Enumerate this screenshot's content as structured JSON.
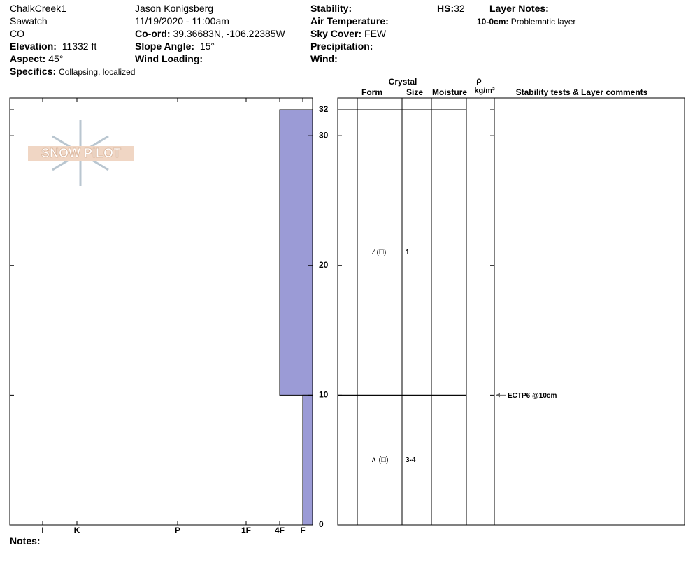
{
  "header": {
    "site": "ChalkCreek1",
    "range": "Sawatch",
    "state": "CO",
    "elevation": {
      "label": "Elevation:",
      "value": "11332 ft"
    },
    "aspect": {
      "label": "Aspect:",
      "value": "45°"
    },
    "specifics": {
      "label": "Specifics:",
      "value": "Collapsing, localized"
    },
    "observer": "Jason Konigsberg",
    "datetime": "11/19/2020 - 11:00am",
    "coord": {
      "label": "Co-ord:",
      "value": "39.36683N, -106.22385W"
    },
    "slope": {
      "label": "Slope Angle:",
      "value": "15°"
    },
    "wind_loading": {
      "label": "Wind Loading:"
    },
    "stability": {
      "label": "Stability:"
    },
    "air_temperature": {
      "label": "Air Temperature:"
    },
    "sky_cover": {
      "label": "Sky Cover:",
      "value": "FEW"
    },
    "precipitation": {
      "label": "Precipitation:"
    },
    "wind": {
      "label": "Wind:"
    },
    "hs": {
      "label": "HS:",
      "value": 32
    },
    "layer_notes": {
      "label": "Layer Notes:",
      "notes": [
        {
          "range": "10-0cm:",
          "text": "Problematic layer"
        }
      ]
    },
    "logo": "SNOW PILOT",
    "notes": {
      "label": "Notes:"
    }
  },
  "columns": {
    "group": "Crystal",
    "form": "Form",
    "size": "Size",
    "moisture": "Moisture",
    "density_symbol": "ρ",
    "density_unit": "kg/m³",
    "comments": "Stability tests & Layer comments"
  },
  "chart_data": {
    "type": "snow-profile",
    "ylim": [
      0,
      32
    ],
    "yticks": [
      0,
      10,
      20,
      30,
      32
    ],
    "hardness_categories": [
      "I",
      "K",
      "P",
      "1F",
      "4F",
      "F"
    ],
    "color": "#9b9bd6",
    "layers": [
      {
        "top": 32,
        "bottom": 10,
        "hardness": "4F",
        "form": "⁄ (□)",
        "size": "1"
      },
      {
        "top": 10,
        "bottom": 0,
        "hardness": "F",
        "form": "∧ (□)",
        "size": "3-4"
      }
    ],
    "tests": [
      {
        "depth": 10,
        "label": "ECTP6 @10cm"
      }
    ]
  }
}
